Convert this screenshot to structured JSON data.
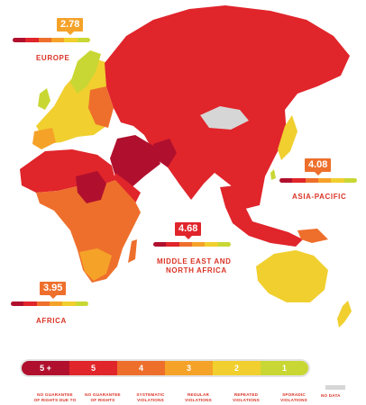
{
  "colors": {
    "c5plus": "#b0102e",
    "c5": "#e0252b",
    "c4": "#ee6f2c",
    "c3": "#f5a229",
    "c2": "#f0cf2f",
    "c1": "#c9d734",
    "nodata": "#d6d6d6"
  },
  "regions": [
    {
      "label": "EUROPE",
      "score": "2.78"
    },
    {
      "label": "ASIA-PACIFIC",
      "score": "4.08"
    },
    {
      "label": "MIDDLE EAST AND",
      "label2": "NORTH AFRICA",
      "score": "4.68"
    },
    {
      "label": "AFRICA",
      "score": "3.95"
    }
  ],
  "legend": {
    "ratings": [
      "5 +",
      "5",
      "4",
      "3",
      "2",
      "1"
    ],
    "descriptions": [
      [
        "NO GUARANTEE",
        "OF RIGHTS DUE TO"
      ],
      [
        "NO GUARANTEE",
        "OF RIGHTS"
      ],
      [
        "SYSTEMATIC",
        "VIOLATIONS"
      ],
      [
        "REGULAR",
        "VIOLATIONS"
      ],
      [
        "REPEATED",
        "VIOLATIONS"
      ],
      [
        "SPORADIC",
        "VIOLATIONS"
      ]
    ],
    "nodata_label": "NO DATA"
  }
}
